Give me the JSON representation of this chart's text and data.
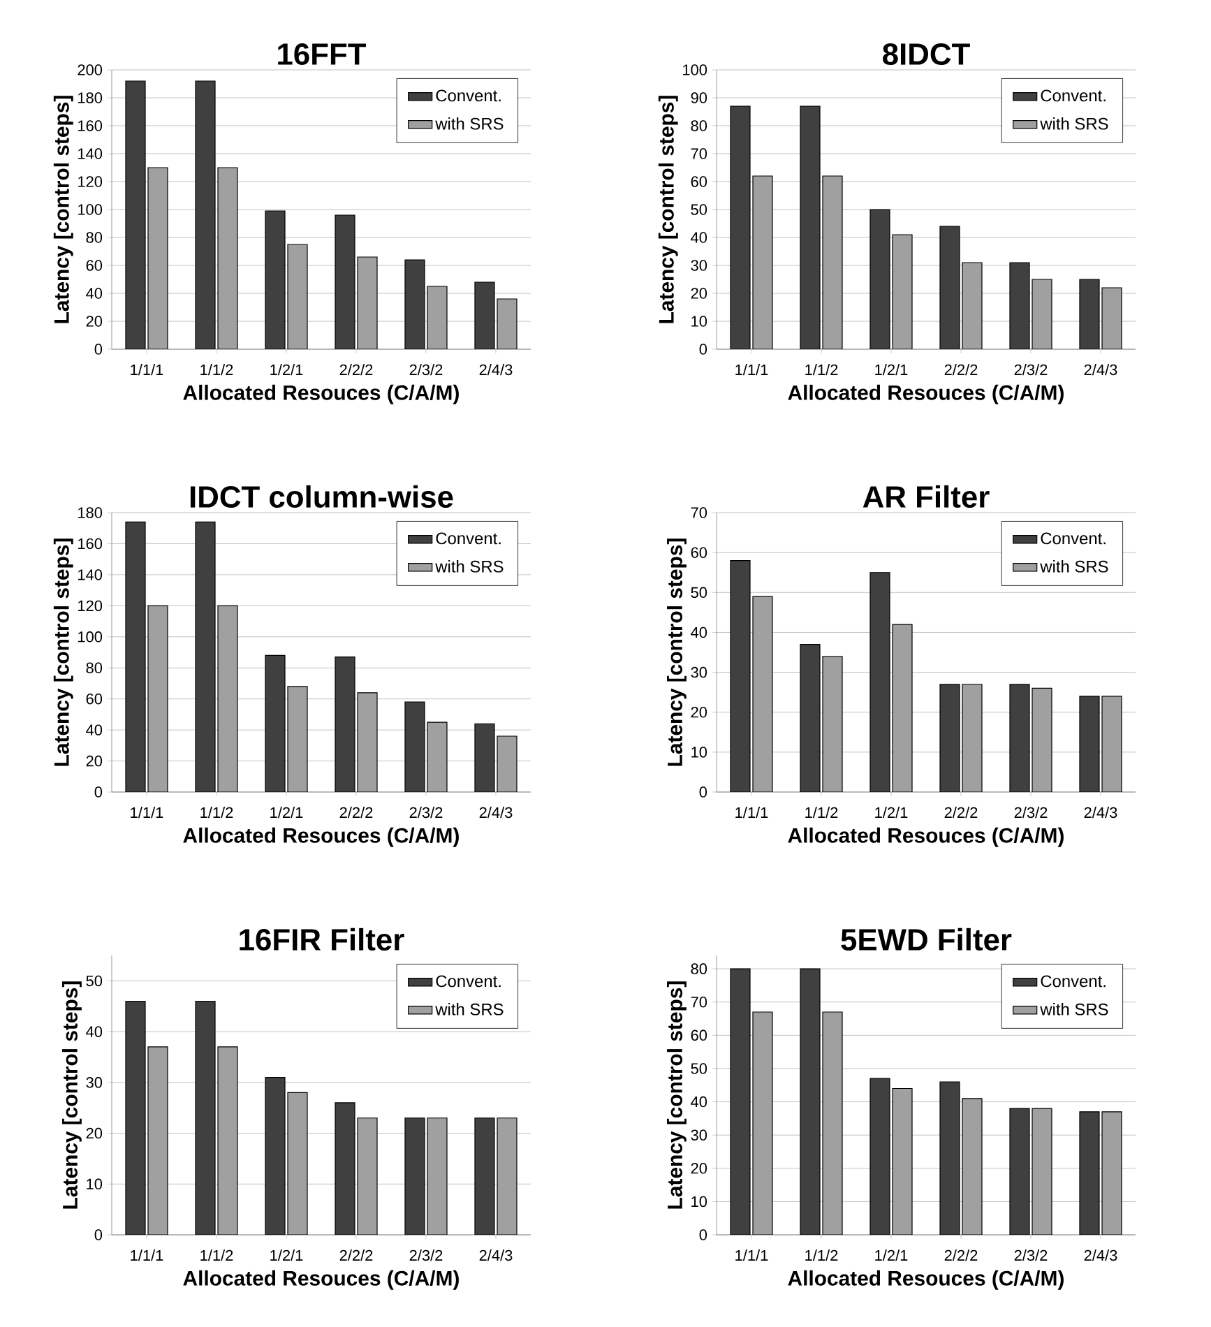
{
  "chart_data": [
    {
      "type": "bar",
      "title": "16FFT",
      "xlabel": "Allocated Resouces (C/A/M)",
      "ylabel": "Latency [control steps]",
      "categories": [
        "1/1/1",
        "1/1/2",
        "1/2/1",
        "2/2/2",
        "2/3/2",
        "2/4/3"
      ],
      "ylim": [
        0,
        200
      ],
      "yticks": [
        0,
        20,
        40,
        60,
        80,
        100,
        120,
        140,
        160,
        180,
        200
      ],
      "grid": "y",
      "legend": "top right",
      "series": [
        {
          "name": "Convent.",
          "color": "#404040",
          "values": [
            192,
            192,
            99,
            96,
            64,
            48
          ]
        },
        {
          "name": "with SRS",
          "color": "#a0a0a0",
          "values": [
            130,
            130,
            75,
            66,
            45,
            36
          ]
        }
      ]
    },
    {
      "type": "bar",
      "title": "8IDCT",
      "xlabel": "Allocated Resouces (C/A/M)",
      "ylabel": "Latency [control steps]",
      "categories": [
        "1/1/1",
        "1/1/2",
        "1/2/1",
        "2/2/2",
        "2/3/2",
        "2/4/3"
      ],
      "ylim": [
        0,
        100
      ],
      "yticks": [
        0,
        10,
        20,
        30,
        40,
        50,
        60,
        70,
        80,
        90,
        100
      ],
      "grid": "y",
      "legend": "top right",
      "series": [
        {
          "name": "Convent.",
          "color": "#404040",
          "values": [
            87,
            87,
            50,
            44,
            31,
            25
          ]
        },
        {
          "name": "with SRS",
          "color": "#a0a0a0",
          "values": [
            62,
            62,
            41,
            31,
            25,
            22
          ]
        }
      ]
    },
    {
      "type": "bar",
      "title": "IDCT column-wise",
      "xlabel": "Allocated Resouces (C/A/M)",
      "ylabel": "Latency [control steps]",
      "categories": [
        "1/1/1",
        "1/1/2",
        "1/2/1",
        "2/2/2",
        "2/3/2",
        "2/4/3"
      ],
      "ylim": [
        0,
        180
      ],
      "yticks": [
        0,
        20,
        40,
        60,
        80,
        100,
        120,
        140,
        160,
        180
      ],
      "grid": "y",
      "legend": "top right",
      "series": [
        {
          "name": "Convent.",
          "color": "#404040",
          "values": [
            174,
            174,
            88,
            87,
            58,
            44
          ]
        },
        {
          "name": "with SRS",
          "color": "#a0a0a0",
          "values": [
            120,
            120,
            68,
            64,
            45,
            36
          ]
        }
      ]
    },
    {
      "type": "bar",
      "title": "AR Filter",
      "xlabel": "Allocated Resouces (C/A/M)",
      "ylabel": "Latency [control steps]",
      "categories": [
        "1/1/1",
        "1/1/2",
        "1/2/1",
        "2/2/2",
        "2/3/2",
        "2/4/3"
      ],
      "ylim": [
        0,
        70
      ],
      "yticks": [
        0,
        10,
        20,
        30,
        40,
        50,
        60,
        70
      ],
      "grid": "y",
      "legend": "top right",
      "series": [
        {
          "name": "Convent.",
          "color": "#404040",
          "values": [
            58,
            37,
            55,
            27,
            27,
            24
          ]
        },
        {
          "name": "with SRS",
          "color": "#a0a0a0",
          "values": [
            49,
            34,
            42,
            27,
            26,
            24
          ]
        }
      ]
    },
    {
      "type": "bar",
      "title": "16FIR Filter",
      "xlabel": "Allocated Resouces (C/A/M)",
      "ylabel": "Latency [control steps]",
      "categories": [
        "1/1/1",
        "1/1/2",
        "1/2/1",
        "2/2/2",
        "2/3/2",
        "2/4/3"
      ],
      "ylim": [
        0,
        55
      ],
      "yticks": [
        0,
        10,
        20,
        30,
        40,
        50
      ],
      "grid": "y",
      "legend": "top right",
      "series": [
        {
          "name": "Convent.",
          "color": "#404040",
          "values": [
            46,
            46,
            31,
            26,
            23,
            23
          ]
        },
        {
          "name": "with SRS",
          "color": "#a0a0a0",
          "values": [
            37,
            37,
            28,
            23,
            23,
            23
          ]
        }
      ]
    },
    {
      "type": "bar",
      "title": "5EWD Filter",
      "xlabel": "Allocated Resouces (C/A/M)",
      "ylabel": "Latency [control steps]",
      "categories": [
        "1/1/1",
        "1/1/2",
        "1/2/1",
        "2/2/2",
        "2/3/2",
        "2/4/3"
      ],
      "ylim": [
        0,
        84
      ],
      "yticks": [
        0,
        10,
        20,
        30,
        40,
        50,
        60,
        70,
        80
      ],
      "grid": "y",
      "legend": "top right",
      "series": [
        {
          "name": "Convent.",
          "color": "#404040",
          "values": [
            80,
            80,
            47,
            46,
            38,
            37
          ]
        },
        {
          "name": "with SRS",
          "color": "#a0a0a0",
          "values": [
            67,
            67,
            44,
            41,
            38,
            37
          ]
        }
      ]
    }
  ]
}
